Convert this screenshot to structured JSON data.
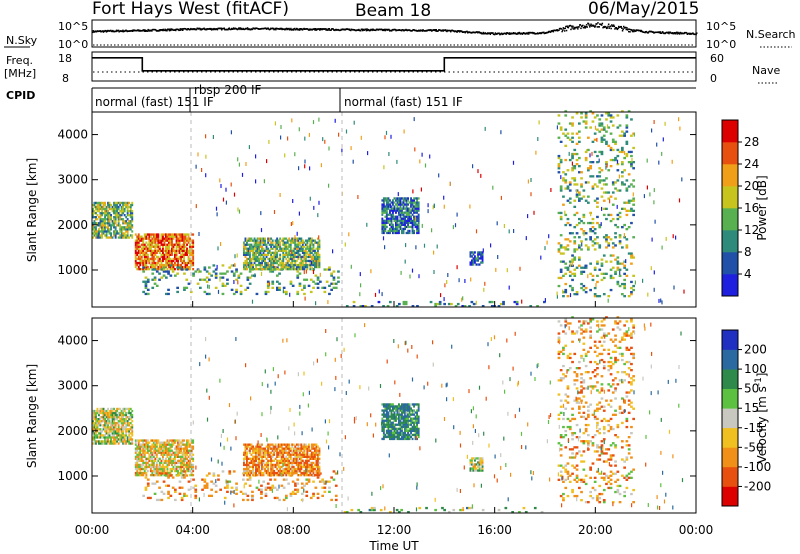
{
  "header": {
    "station": "Fort Hays West (fitACF)",
    "beam": "Beam 18",
    "date": "06/May/2015"
  },
  "noise_panel": {
    "left_label": "N.Sky",
    "right_label": "N.Search",
    "left_ticks": [
      "10^5",
      "10^0"
    ],
    "right_ticks": [
      "10^5",
      "10^0"
    ]
  },
  "freq_panel": {
    "left_label_1": "Freq.",
    "left_label_2": "[MHz]",
    "right_label": "Nave",
    "left_ticks": [
      "18",
      "8"
    ],
    "right_ticks": [
      "60",
      "0"
    ],
    "freq_trace": [
      {
        "t": 0.0,
        "f": 16
      },
      {
        "t": 2.0,
        "f": 16
      },
      {
        "t": 2.0,
        "f": 11.5
      },
      {
        "t": 14.0,
        "f": 11.5
      },
      {
        "t": 14.0,
        "f": 16
      },
      {
        "t": 24.0,
        "f": 16
      }
    ]
  },
  "cpid": {
    "label": "CPID",
    "segments": [
      {
        "start": 0.0,
        "text": "normal (fast) 151 IF"
      },
      {
        "start": 3.3,
        "text": "rbsp 200 IF"
      },
      {
        "start": 10.0,
        "text": "normal (fast) 151 IF"
      }
    ]
  },
  "x_axis": {
    "label": "Time UT",
    "ticks": [
      "00:00",
      "04:00",
      "08:00",
      "12:00",
      "16:00",
      "20:00",
      "00:00"
    ],
    "range_hours": [
      0,
      24
    ]
  },
  "y_axis": {
    "label": "Slant Range [km]",
    "ticks": [
      "1000",
      "2000",
      "3000",
      "4000"
    ],
    "range_km": [
      180,
      4500
    ]
  },
  "power_colorbar": {
    "label": "Power [dB]",
    "ticks": [
      "4",
      "8",
      "12",
      "16",
      "20",
      "24",
      "28"
    ],
    "colors": [
      "#1f1fe0",
      "#2050a8",
      "#2e8a7a",
      "#58b050",
      "#c8c41e",
      "#f0a018",
      "#e85010",
      "#dd0000"
    ]
  },
  "velocity_colorbar": {
    "label": "Velocity [m s",
    "label_sup": "-1",
    "label_end": "]",
    "ticks": [
      "200",
      "100",
      "50",
      "15",
      "-15",
      "-50",
      "-100",
      "-200"
    ],
    "colors": [
      "#2030c0",
      "#2a6aa0",
      "#2e8a4a",
      "#5cc040",
      "#c8c8c0",
      "#f0c020",
      "#f09018",
      "#e85010",
      "#dd0000"
    ]
  },
  "chart_data": [
    {
      "type": "line",
      "title": "Fort Hays West (fitACF) Beam 18 06/May/2015",
      "series": [
        {
          "name": "N.Sky",
          "x": [
            0,
            2,
            4,
            6,
            8,
            10,
            12,
            14,
            16,
            18,
            19,
            20,
            21,
            22,
            24
          ],
          "y": [
            3.3,
            3.5,
            3.8,
            3.9,
            3.8,
            3.7,
            3.6,
            3.5,
            2.8,
            3.0,
            4.2,
            4.8,
            4.0,
            3.2,
            2.8
          ]
        },
        {
          "name": "N.Search",
          "x": [
            0,
            24
          ],
          "y": [
            0,
            0
          ]
        }
      ],
      "xlim": [
        0,
        24
      ],
      "ylabel_left": "N.Sky",
      "ylabel_right": "N.Search"
    },
    {
      "type": "line",
      "series": [
        {
          "name": "Freq.",
          "x": [
            0,
            2,
            2,
            14,
            14,
            24
          ],
          "y": [
            16,
            16,
            11.5,
            11.5,
            16,
            16
          ]
        },
        {
          "name": "Nave",
          "x": [
            0,
            24
          ],
          "y": [
            18,
            18
          ]
        }
      ],
      "ylim_left": [
        8,
        18
      ],
      "ylim_right": [
        0,
        60
      ],
      "ylabel_left": "Freq. [MHz]",
      "ylabel_right": "Nave"
    },
    {
      "type": "heatmap",
      "quantity": "Power",
      "xlabel": "Time UT",
      "ylabel": "Slant Range [km]",
      "xlim": [
        0,
        24
      ],
      "ylim": [
        180,
        4500
      ],
      "colorbar_label": "Power [dB]",
      "colorbar_ticks": [
        4,
        8,
        12,
        16,
        20,
        24,
        28
      ],
      "echo_regions": [
        {
          "t0": 0.0,
          "t1": 1.6,
          "r0": 1700,
          "r1": 2500,
          "value": 14
        },
        {
          "t0": 1.7,
          "t1": 4.0,
          "r0": 1000,
          "r1": 1800,
          "value": 24
        },
        {
          "t0": 2.0,
          "t1": 9.8,
          "r0": 450,
          "r1": 1100,
          "value": 12
        },
        {
          "t0": 6.0,
          "t1": 9.0,
          "r0": 1000,
          "r1": 1700,
          "value": 14
        },
        {
          "t0": 10.0,
          "t1": 18.0,
          "r0": 180,
          "r1": 300,
          "value": 10
        },
        {
          "t0": 11.5,
          "t1": 13.0,
          "r0": 1800,
          "r1": 2600,
          "value": 8
        },
        {
          "t0": 15.0,
          "t1": 15.5,
          "r0": 1100,
          "r1": 1400,
          "value": 6
        },
        {
          "t0": 18.5,
          "t1": 21.5,
          "r0": 400,
          "r1": 4500,
          "value": 14
        }
      ]
    },
    {
      "type": "heatmap",
      "quantity": "Velocity",
      "xlabel": "Time UT",
      "ylabel": "Slant Range [km]",
      "xlim": [
        0,
        24
      ],
      "ylim": [
        180,
        4500
      ],
      "colorbar_label": "Velocity [m s-1]",
      "colorbar_ticks": [
        200,
        100,
        50,
        15,
        -15,
        -50,
        -100,
        -200
      ],
      "echo_regions": [
        {
          "t0": 0.0,
          "t1": 1.6,
          "r0": 1700,
          "r1": 2500,
          "value": 0
        },
        {
          "t0": 1.7,
          "t1": 4.0,
          "r0": 1000,
          "r1": 1800,
          "value": -30
        },
        {
          "t0": 2.0,
          "t1": 9.8,
          "r0": 450,
          "r1": 1100,
          "value": -60
        },
        {
          "t0": 6.0,
          "t1": 9.0,
          "r0": 1000,
          "r1": 1700,
          "value": -80
        },
        {
          "t0": 10.0,
          "t1": 18.0,
          "r0": 180,
          "r1": 300,
          "value": 30
        },
        {
          "t0": 11.5,
          "t1": 13.0,
          "r0": 1800,
          "r1": 2600,
          "value": 100
        },
        {
          "t0": 15.0,
          "t1": 15.5,
          "r0": 1100,
          "r1": 1400,
          "value": 0
        },
        {
          "t0": 18.5,
          "t1": 21.5,
          "r0": 400,
          "r1": 4500,
          "value": -50
        }
      ]
    }
  ]
}
